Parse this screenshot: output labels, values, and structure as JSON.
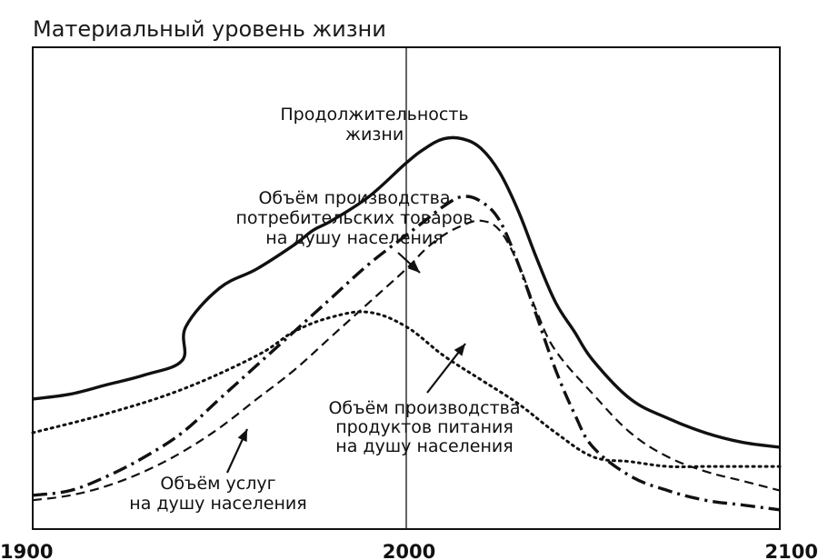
{
  "chart_data": {
    "type": "line",
    "title": "Материальный уровень жизни",
    "xlabel": "",
    "ylabel": "",
    "xlim": [
      1900,
      2100
    ],
    "ylim": [
      0,
      100
    ],
    "x_ticks": [
      "1900",
      "2000",
      "2100"
    ],
    "vertical_marker": 2000,
    "series": [
      {
        "name": "Продолжительность жизни",
        "style": "solid",
        "x": [
          1900,
          1910,
          1920,
          1930,
          1940,
          1941,
          1950,
          1960,
          1970,
          1975,
          1980,
          1990,
          2000,
          2005,
          2010,
          2015,
          2020,
          2025,
          2030,
          2035,
          2040,
          2045,
          2050,
          2060,
          2070,
          2080,
          2090,
          2100
        ],
        "y": [
          27,
          28,
          30,
          32,
          35,
          42,
          50,
          54,
          59,
          62,
          64,
          69,
          76,
          79,
          81,
          81,
          79,
          74,
          66,
          56,
          47,
          41,
          35,
          27,
          23,
          20,
          18,
          17
        ]
      },
      {
        "name": "Объём производства потребительских товаров на душу населения",
        "style": "dash-dot",
        "x": [
          1900,
          1910,
          1920,
          1930,
          1940,
          1950,
          1960,
          1970,
          1980,
          1990,
          2000,
          2005,
          2010,
          2015,
          2020,
          2025,
          2030,
          2035,
          2040,
          2045,
          2050,
          2060,
          2070,
          2080,
          2090,
          2100
        ],
        "y": [
          7,
          8,
          11,
          15,
          20,
          27,
          34,
          41,
          48,
          55,
          61,
          64,
          67,
          69,
          68,
          64,
          55,
          44,
          33,
          24,
          17,
          11,
          8,
          6,
          5,
          4
        ]
      },
      {
        "name": "Объём производства продуктов питания на душу населения",
        "style": "dotted",
        "x": [
          1900,
          1920,
          1940,
          1960,
          1970,
          1980,
          1990,
          2000,
          2010,
          2020,
          2030,
          2040,
          2050,
          2060,
          2070,
          2080,
          2090,
          2100
        ],
        "y": [
          20,
          24,
          29,
          36,
          41,
          44,
          45,
          42,
          36,
          31,
          26,
          20,
          15,
          14,
          13,
          13,
          13,
          13
        ]
      },
      {
        "name": "Объём услуг на душу населения",
        "style": "dashed",
        "x": [
          1900,
          1910,
          1920,
          1930,
          1940,
          1950,
          1960,
          1970,
          1980,
          1990,
          2000,
          2005,
          2010,
          2015,
          2020,
          2025,
          2030,
          2035,
          2040,
          2050,
          2060,
          2070,
          2080,
          2090,
          2100
        ],
        "y": [
          6,
          7,
          9,
          12,
          16,
          21,
          27,
          33,
          40,
          47,
          54,
          58,
          61,
          63,
          64,
          62,
          55,
          45,
          37,
          28,
          20,
          15,
          12,
          10,
          8
        ]
      }
    ],
    "annotations": [
      {
        "lines": [
          "Продолжительность",
          "жизни"
        ],
        "series": 0
      },
      {
        "lines": [
          "Объём производства",
          "потребительских товаров",
          "на душу населения"
        ],
        "series": 1
      },
      {
        "lines": [
          "Объём производства",
          "продуктов питания",
          "на душу населения"
        ],
        "series": 2
      },
      {
        "lines": [
          "Объём услуг",
          "на душу населения"
        ],
        "series": 3
      }
    ]
  }
}
